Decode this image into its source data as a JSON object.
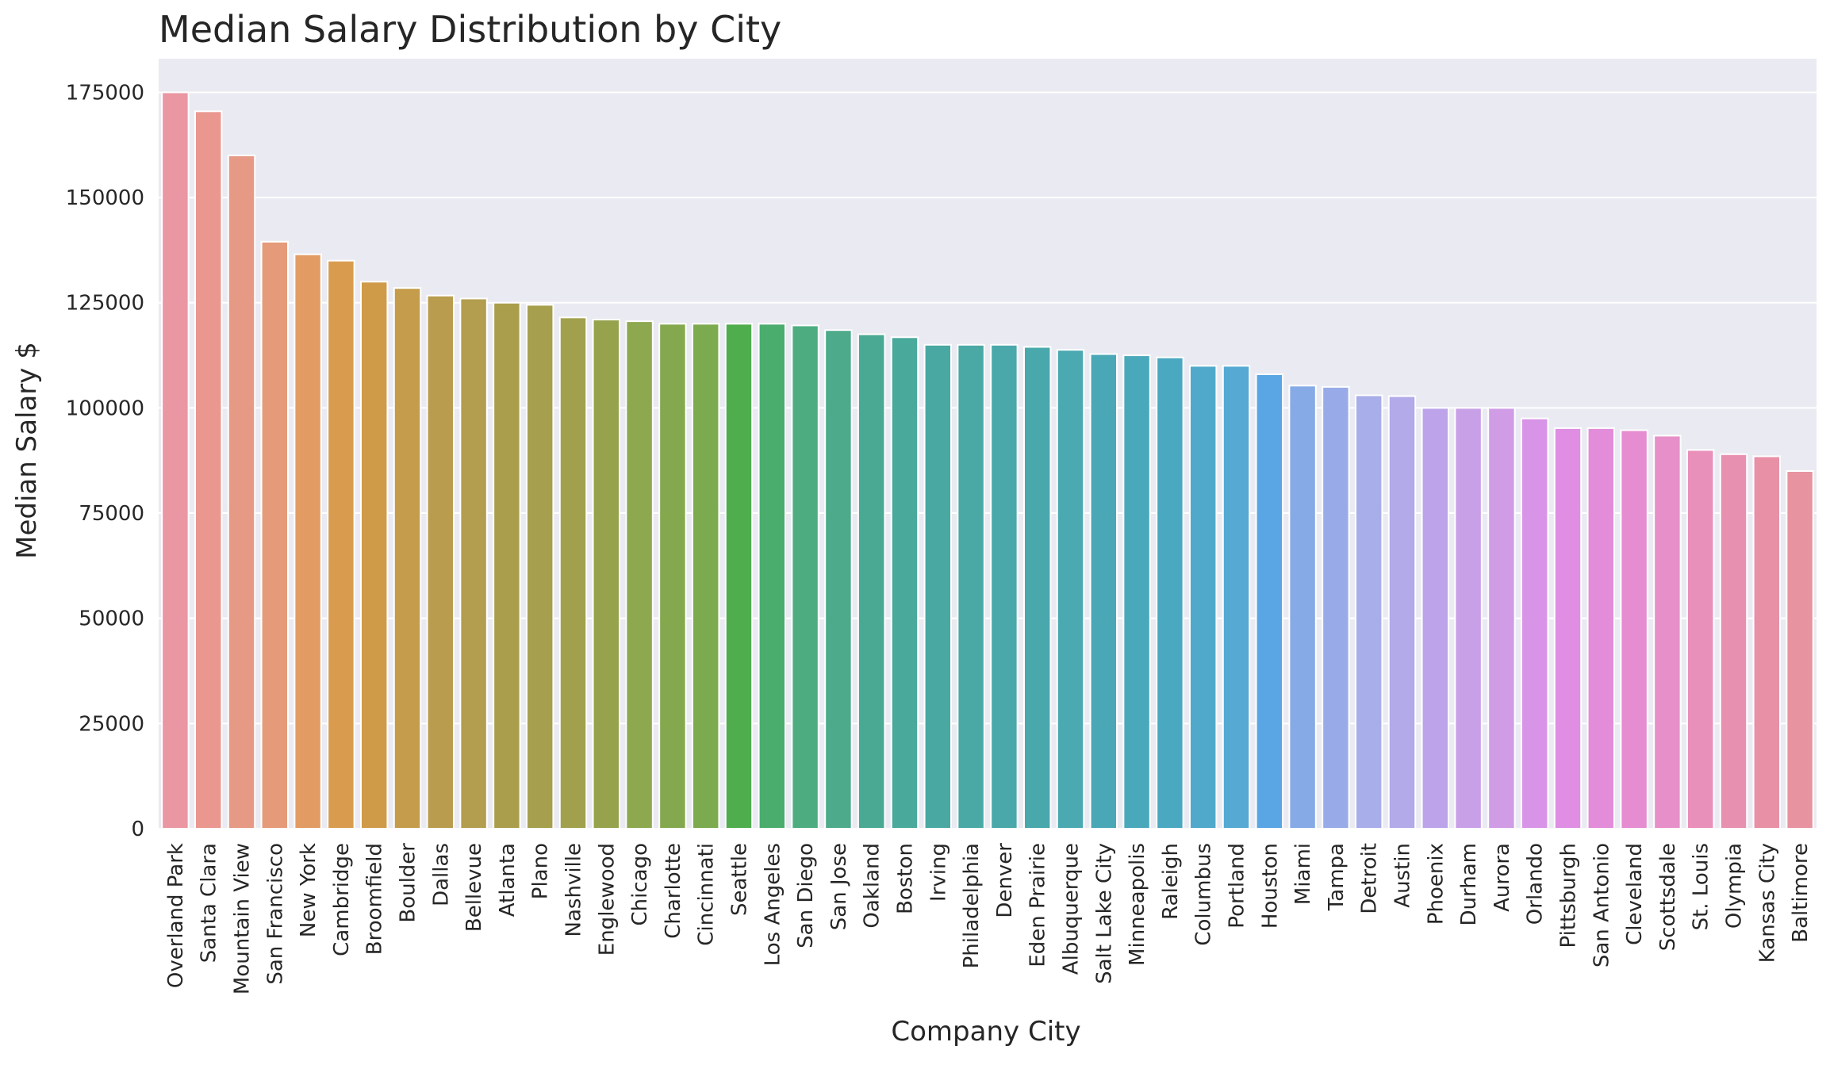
{
  "chart_data": {
    "type": "bar",
    "title": "Median Salary Distribution by City",
    "xlabel": "Company City",
    "ylabel": "Median Salary $",
    "ylim": [
      0,
      183000
    ],
    "yticks": [
      0,
      25000,
      50000,
      75000,
      100000,
      125000,
      150000,
      175000
    ],
    "grid": true,
    "legend": "none",
    "categories": [
      "Overland Park",
      "Santa Clara",
      "Mountain View",
      "San Francisco",
      "New York",
      "Cambridge",
      "Broomfield",
      "Boulder",
      "Dallas",
      "Bellevue",
      "Atlanta",
      "Plano",
      "Nashville",
      "Englewood",
      "Chicago",
      "Charlotte",
      "Cincinnati",
      "Seattle",
      "Los Angeles",
      "San Diego",
      "San Jose",
      "Oakland",
      "Boston",
      "Irving",
      "Philadelphia",
      "Denver",
      "Eden Prairie",
      "Albuquerque",
      "Salt Lake City",
      "Minneapolis",
      "Raleigh",
      "Columbus",
      "Portland",
      "Houston",
      "Miami",
      "Tampa",
      "Detroit",
      "Austin",
      "Phoenix",
      "Durham",
      "Aurora",
      "Orlando",
      "Pittsburgh",
      "San Antonio",
      "Cleveland",
      "Scottsdale",
      "St. Louis",
      "Olympia",
      "Kansas City",
      "Baltimore"
    ],
    "values": [
      175000,
      170500,
      160000,
      139500,
      136500,
      135000,
      130000,
      128500,
      126700,
      126000,
      125000,
      124500,
      121500,
      121000,
      120600,
      120000,
      120000,
      120000,
      120000,
      119600,
      118500,
      117500,
      116800,
      115000,
      115000,
      115000,
      114500,
      113800,
      112800,
      112500,
      112000,
      110000,
      110000,
      108000,
      105300,
      105000,
      103000,
      102800,
      100000,
      100000,
      100000,
      97500,
      95200,
      95200,
      94700,
      93400,
      90000,
      89000,
      88500,
      85000
    ],
    "colors": [
      "#ea96a3",
      "#e9978f",
      "#e69a86",
      "#e59a79",
      "#e29c63",
      "#d99c4e",
      "#cf9b48",
      "#c49c4c",
      "#b99c4e",
      "#b39d4e",
      "#aa9e4c",
      "#a69f4d",
      "#a1a04c",
      "#96a34c",
      "#8da84f",
      "#84a84d",
      "#7bab4e",
      "#4fad4e",
      "#4aac6d",
      "#4dad80",
      "#4daa8b",
      "#4aa993",
      "#49a99b",
      "#49a8a2",
      "#4aa8a5",
      "#4aa8aa",
      "#49a8ac",
      "#4aa9b1",
      "#4aa8b6",
      "#4aa8bb",
      "#4ba8c1",
      "#50a9ca",
      "#55a9d3",
      "#5aa6e4",
      "#86aae6",
      "#98abe8",
      "#a8aee9",
      "#b2aae9",
      "#bca3ea",
      "#c8a0e7",
      "#d09ce6",
      "#d894e7",
      "#df8ee3",
      "#e38cd9",
      "#e68cd1",
      "#e78fc8",
      "#e88fba",
      "#e890b0",
      "#e890a6",
      "#e893a0"
    ],
    "plot_bg": "#eaeaf2",
    "grid_color": "#ffffff"
  }
}
